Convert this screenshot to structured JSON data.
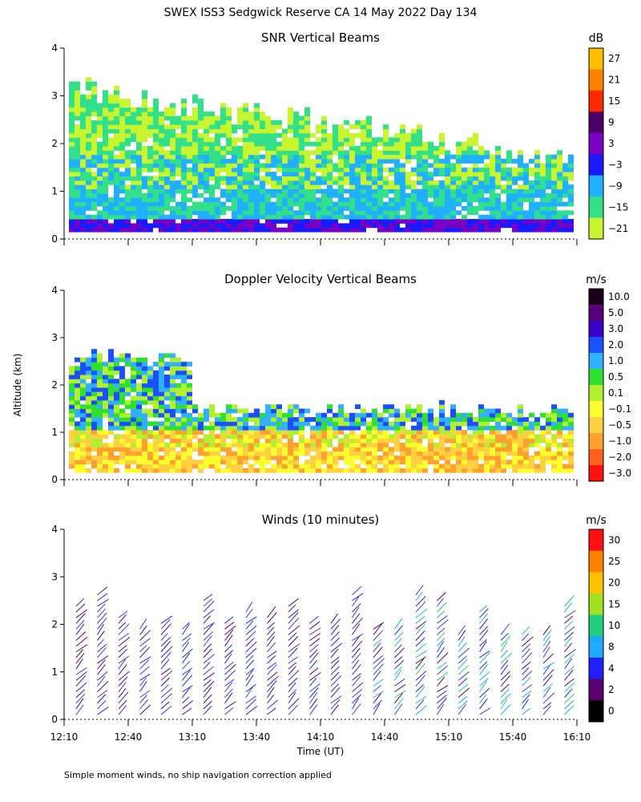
{
  "title": "SWEX ISS3 Sedgwick Reserve CA  14 May 2022 Day 134",
  "ylabel": "Altitude (km)",
  "xlabel": "Time (UT)",
  "footnote": "Simple moment winds, no ship navigation correction applied",
  "chart_data": [
    {
      "type": "heatmap",
      "title": "SNR Vertical Beams",
      "colorbar_unit": "dB",
      "colorbar_ticks": [
        "27",
        "21",
        "15",
        "9",
        "3",
        "−3",
        "−9",
        "−15",
        "−21"
      ],
      "colorbar_colors": [
        "#ffbf00",
        "#ff8000",
        "#ff2a00",
        "#4a0066",
        "#7a00c4",
        "#1a1aff",
        "#20b0ff",
        "#33e08a",
        "#c8f530"
      ],
      "ylim": [
        0,
        4
      ],
      "yticks": [
        "0",
        "1",
        "2",
        "3",
        "4"
      ],
      "xlim": [
        "12:10",
        "16:10"
      ]
    },
    {
      "type": "heatmap",
      "title": "Doppler Velocity Vertical Beams",
      "colorbar_unit": "m/s",
      "colorbar_ticks": [
        "10.0",
        "5.0",
        "3.0",
        "2.0",
        "1.0",
        "0.5",
        "0.1",
        "−0.1",
        "−0.5",
        "−1.0",
        "−2.0",
        "−3.0"
      ],
      "colorbar_colors": [
        "#1a001a",
        "#5a007a",
        "#3a00c8",
        "#1a50ff",
        "#30b0ff",
        "#30e030",
        "#b0f030",
        "#ffff30",
        "#ffd040",
        "#ffa030",
        "#ff6020",
        "#ff1010"
      ],
      "ylim": [
        0,
        4
      ],
      "yticks": [
        "0",
        "1",
        "2",
        "3",
        "4"
      ],
      "xlim": [
        "12:10",
        "16:10"
      ]
    },
    {
      "type": "scatter",
      "title": "Winds (10 minutes)",
      "colorbar_unit": "m/s",
      "colorbar_ticks": [
        "30",
        "25",
        "20",
        "15",
        "10",
        "8",
        "4",
        "2",
        "0"
      ],
      "colorbar_colors": [
        "#ff1010",
        "#ff8000",
        "#ffc000",
        "#a0e020",
        "#20d080",
        "#20a8ff",
        "#2020ff",
        "#5a0070",
        "#000000"
      ],
      "ylim": [
        0,
        4
      ],
      "yticks": [
        "0",
        "1",
        "2",
        "3",
        "4"
      ],
      "xticks": [
        "12:10",
        "12:40",
        "13:10",
        "13:40",
        "14:10",
        "14:40",
        "15:10",
        "15:40",
        "16:10"
      ]
    }
  ]
}
